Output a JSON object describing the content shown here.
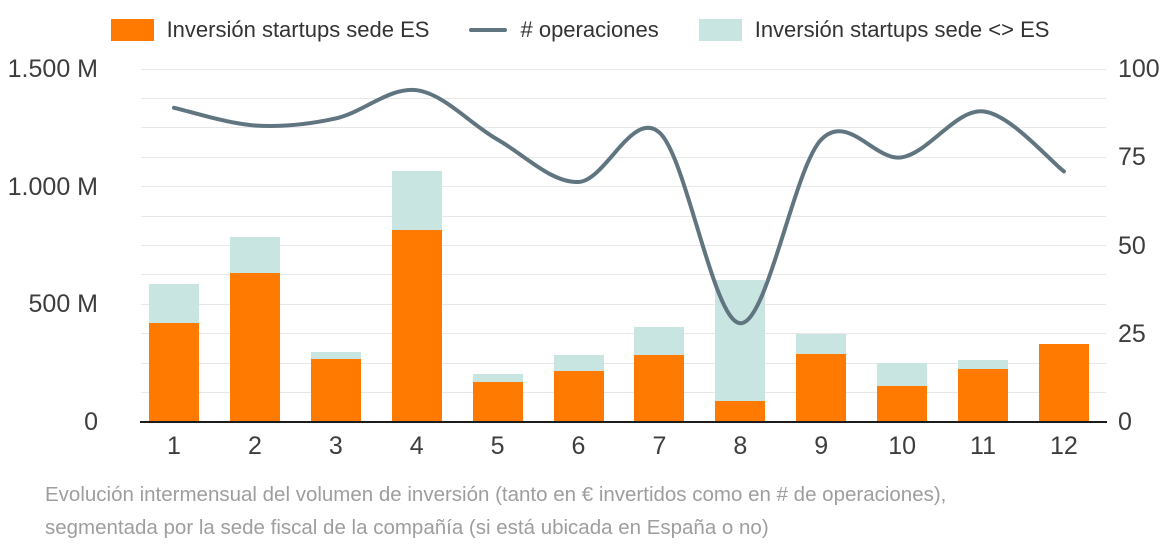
{
  "legend": [
    {
      "label": "Inversión startups sede ES",
      "swatch": "box",
      "color": "#FF7A00"
    },
    {
      "label": "# operaciones",
      "swatch": "line",
      "color": "#607580"
    },
    {
      "label": "Inversión startups sede <> ES",
      "swatch": "box",
      "color": "#C8E5E1"
    }
  ],
  "caption": {
    "line1": "Evolución intermensual del volumen de inversión (tanto en € invertidos como en # de operaciones),",
    "line2": "segmentada por la sede fiscal de la compañía (si está ubicada en España o no)"
  },
  "chart_data": {
    "type": "combo",
    "subtype": "stacked-bar-with-line",
    "categories": [
      "1",
      "2",
      "3",
      "4",
      "5",
      "6",
      "7",
      "8",
      "9",
      "10",
      "11",
      "12"
    ],
    "series": [
      {
        "name": "Inversión startups sede ES",
        "type": "bar",
        "stack": "inversion",
        "axis": "left",
        "color": "#FF7A00",
        "values": [
          420,
          635,
          268,
          815,
          172,
          218,
          285,
          90,
          290,
          155,
          227,
          333
        ]
      },
      {
        "name": "Inversión startups sede <> ES",
        "type": "bar",
        "stack": "inversion",
        "axis": "left",
        "color": "#C8E5E1",
        "values": [
          165,
          150,
          30,
          250,
          33,
          65,
          118,
          515,
          83,
          95,
          38,
          0
        ]
      },
      {
        "name": "# operaciones",
        "type": "line",
        "axis": "right",
        "color": "#607580",
        "smooth": true,
        "stroke_width": 4,
        "values": [
          89,
          84,
          86,
          94,
          80,
          68,
          82,
          28,
          80,
          75,
          88,
          71
        ]
      }
    ],
    "left_axis": {
      "min": 0,
      "max": 1500,
      "unit": "M",
      "tick_values": [
        0,
        500,
        1000,
        1500
      ],
      "tick_labels": [
        "0",
        "500 M",
        "1.000 M",
        "1.500 M"
      ],
      "gridline_step": 125
    },
    "right_axis": {
      "min": 0,
      "max": 100,
      "tick_values": [
        0,
        25,
        50,
        75,
        100
      ],
      "tick_labels": [
        "0",
        "25",
        "50",
        "75",
        "100"
      ]
    },
    "xlabel": "",
    "ylabel": "",
    "title": "",
    "grid": true,
    "legend_position": "top",
    "gridline_color": "#e7e7e7",
    "axis_text_color": "#3d3d3d"
  }
}
